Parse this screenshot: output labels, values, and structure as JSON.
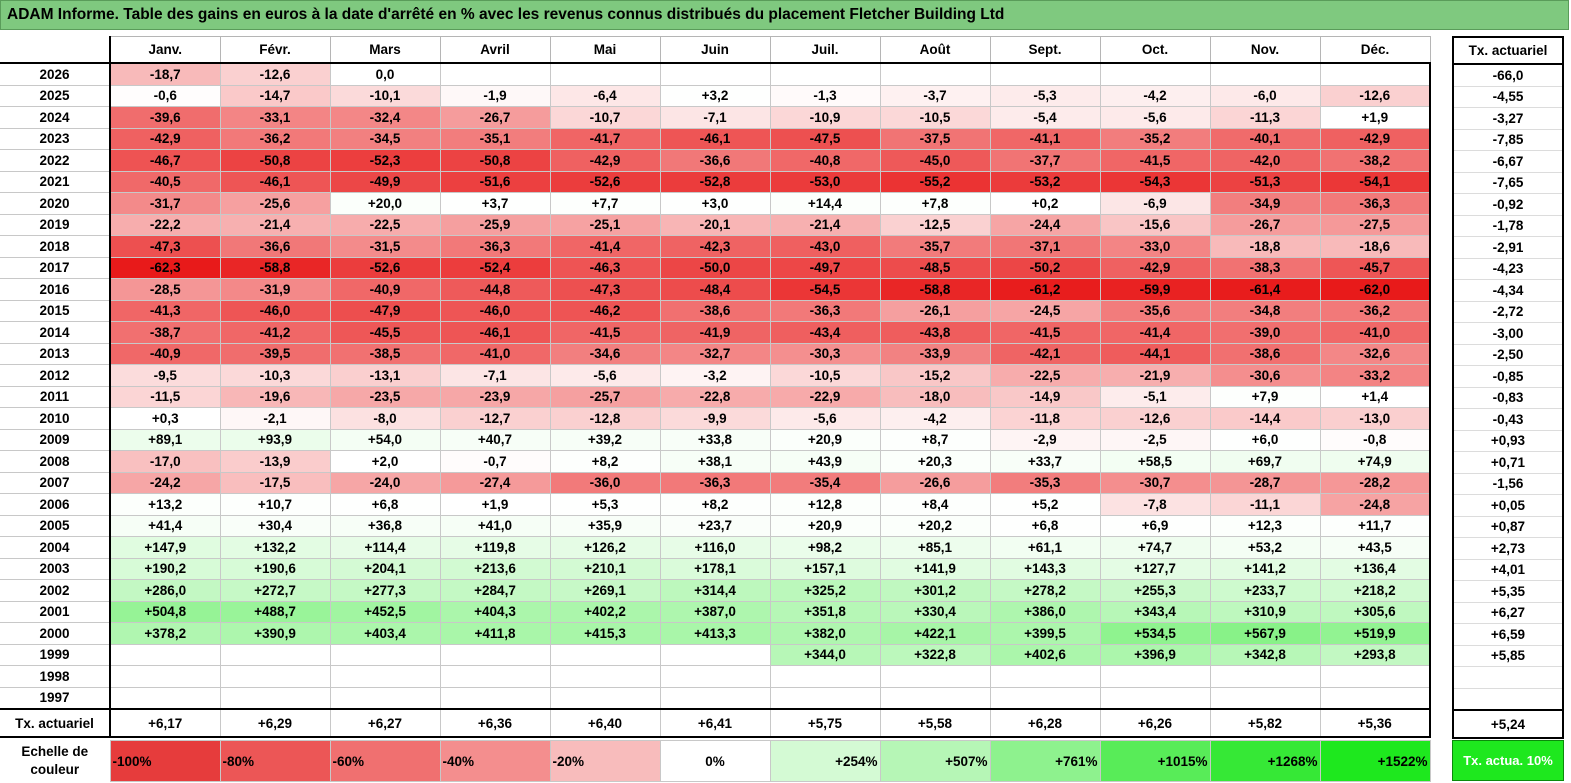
{
  "title": "ADAM Informe. Table des gains en euros à la date d'arrêté en % avec les revenus connus distribués du placement Fletcher Building Ltd",
  "months": [
    "Janv.",
    "Févr.",
    "Mars",
    "Avril",
    "Mai",
    "Juin",
    "Juil.",
    "Août",
    "Sept.",
    "Oct.",
    "Nov.",
    "Déc."
  ],
  "side_header": "Tx. actuariel",
  "rows": [
    {
      "year": "2026",
      "cells": [
        "-18,7",
        "-12,6",
        "0,0",
        "",
        "",
        "",
        "",
        "",
        "",
        "",
        "",
        ""
      ],
      "rate": "-66,0"
    },
    {
      "year": "2025",
      "cells": [
        "-0,6",
        "-14,7",
        "-10,1",
        "-1,9",
        "-6,4",
        "+3,2",
        "-1,3",
        "-3,7",
        "-5,3",
        "-4,2",
        "-6,0",
        "-12,6"
      ],
      "rate": "-4,55"
    },
    {
      "year": "2024",
      "cells": [
        "-39,6",
        "-33,1",
        "-32,4",
        "-26,7",
        "-10,7",
        "-7,1",
        "-10,9",
        "-10,5",
        "-5,4",
        "-5,6",
        "-11,3",
        "+1,9"
      ],
      "rate": "-3,27"
    },
    {
      "year": "2023",
      "cells": [
        "-42,9",
        "-36,2",
        "-34,5",
        "-35,1",
        "-41,7",
        "-46,1",
        "-47,5",
        "-37,5",
        "-41,1",
        "-35,2",
        "-40,1",
        "-42,9"
      ],
      "rate": "-7,85"
    },
    {
      "year": "2022",
      "cells": [
        "-46,7",
        "-50,8",
        "-52,3",
        "-50,8",
        "-42,9",
        "-36,6",
        "-40,8",
        "-45,0",
        "-37,7",
        "-41,5",
        "-42,0",
        "-38,2"
      ],
      "rate": "-6,67"
    },
    {
      "year": "2021",
      "cells": [
        "-40,5",
        "-46,1",
        "-49,9",
        "-51,6",
        "-52,6",
        "-52,8",
        "-53,0",
        "-55,2",
        "-53,2",
        "-54,3",
        "-51,3",
        "-54,1"
      ],
      "rate": "-7,65"
    },
    {
      "year": "2020",
      "cells": [
        "-31,7",
        "-25,6",
        "+20,0",
        "+3,7",
        "+7,7",
        "+3,0",
        "+14,4",
        "+7,8",
        "+0,2",
        "-6,9",
        "-34,9",
        "-36,3"
      ],
      "rate": "-0,92"
    },
    {
      "year": "2019",
      "cells": [
        "-22,2",
        "-21,4",
        "-22,5",
        "-25,9",
        "-25,1",
        "-20,1",
        "-21,4",
        "-12,5",
        "-24,4",
        "-15,6",
        "-26,7",
        "-27,5"
      ],
      "rate": "-1,78"
    },
    {
      "year": "2018",
      "cells": [
        "-47,3",
        "-36,6",
        "-31,5",
        "-36,3",
        "-41,4",
        "-42,3",
        "-43,0",
        "-35,7",
        "-37,1",
        "-33,0",
        "-18,8",
        "-18,6"
      ],
      "rate": "-2,91"
    },
    {
      "year": "2017",
      "cells": [
        "-62,3",
        "-58,8",
        "-52,6",
        "-52,4",
        "-46,3",
        "-50,0",
        "-49,7",
        "-48,5",
        "-50,2",
        "-42,9",
        "-38,3",
        "-45,7"
      ],
      "rate": "-4,23"
    },
    {
      "year": "2016",
      "cells": [
        "-28,5",
        "-31,9",
        "-40,9",
        "-44,8",
        "-47,3",
        "-48,4",
        "-54,5",
        "-58,8",
        "-61,2",
        "-59,9",
        "-61,4",
        "-62,0"
      ],
      "rate": "-4,34"
    },
    {
      "year": "2015",
      "cells": [
        "-41,3",
        "-46,0",
        "-47,9",
        "-46,0",
        "-46,2",
        "-38,6",
        "-36,3",
        "-26,1",
        "-24,5",
        "-35,6",
        "-34,8",
        "-36,2"
      ],
      "rate": "-2,72"
    },
    {
      "year": "2014",
      "cells": [
        "-38,7",
        "-41,2",
        "-45,5",
        "-46,1",
        "-41,5",
        "-41,9",
        "-43,4",
        "-43,8",
        "-41,5",
        "-41,4",
        "-39,0",
        "-41,0"
      ],
      "rate": "-3,00"
    },
    {
      "year": "2013",
      "cells": [
        "-40,9",
        "-39,5",
        "-38,5",
        "-41,0",
        "-34,6",
        "-32,7",
        "-30,3",
        "-33,9",
        "-42,1",
        "-44,1",
        "-38,6",
        "-32,6"
      ],
      "rate": "-2,50"
    },
    {
      "year": "2012",
      "cells": [
        "-9,5",
        "-10,3",
        "-13,1",
        "-7,1",
        "-5,6",
        "-3,2",
        "-10,5",
        "-15,2",
        "-22,5",
        "-21,9",
        "-30,6",
        "-33,2"
      ],
      "rate": "-0,85"
    },
    {
      "year": "2011",
      "cells": [
        "-11,5",
        "-19,6",
        "-23,5",
        "-23,9",
        "-25,7",
        "-22,8",
        "-22,9",
        "-18,0",
        "-14,9",
        "-5,1",
        "+7,9",
        "+1,4"
      ],
      "rate": "-0,83"
    },
    {
      "year": "2010",
      "cells": [
        "+0,3",
        "-2,1",
        "-8,0",
        "-12,7",
        "-12,8",
        "-9,9",
        "-5,6",
        "-4,2",
        "-11,8",
        "-12,6",
        "-14,4",
        "-13,0"
      ],
      "rate": "-0,43"
    },
    {
      "year": "2009",
      "cells": [
        "+89,1",
        "+93,9",
        "+54,0",
        "+40,7",
        "+39,2",
        "+33,8",
        "+20,9",
        "+8,7",
        "-2,9",
        "-2,5",
        "+6,0",
        "-0,8"
      ],
      "rate": "+0,93"
    },
    {
      "year": "2008",
      "cells": [
        "-17,0",
        "-13,9",
        "+2,0",
        "-0,7",
        "+8,2",
        "+38,1",
        "+43,9",
        "+20,3",
        "+33,7",
        "+58,5",
        "+69,7",
        "+74,9"
      ],
      "rate": "+0,71"
    },
    {
      "year": "2007",
      "cells": [
        "-24,2",
        "-17,5",
        "-24,0",
        "-27,4",
        "-36,0",
        "-36,3",
        "-35,4",
        "-26,6",
        "-35,3",
        "-30,7",
        "-28,7",
        "-28,2"
      ],
      "rate": "-1,56"
    },
    {
      "year": "2006",
      "cells": [
        "+13,2",
        "+10,7",
        "+6,8",
        "+1,9",
        "+5,3",
        "+8,2",
        "+12,8",
        "+8,4",
        "+5,2",
        "-7,8",
        "-11,1",
        "-24,8"
      ],
      "rate": "+0,05"
    },
    {
      "year": "2005",
      "cells": [
        "+41,4",
        "+30,4",
        "+36,8",
        "+41,0",
        "+35,9",
        "+23,7",
        "+20,9",
        "+20,2",
        "+6,8",
        "+6,9",
        "+12,3",
        "+11,7"
      ],
      "rate": "+0,87"
    },
    {
      "year": "2004",
      "cells": [
        "+147,9",
        "+132,2",
        "+114,4",
        "+119,8",
        "+126,2",
        "+116,0",
        "+98,2",
        "+85,1",
        "+61,1",
        "+74,7",
        "+53,2",
        "+43,5"
      ],
      "rate": "+2,73"
    },
    {
      "year": "2003",
      "cells": [
        "+190,2",
        "+190,6",
        "+204,1",
        "+213,6",
        "+210,1",
        "+178,1",
        "+157,1",
        "+141,9",
        "+143,3",
        "+127,7",
        "+141,2",
        "+136,4"
      ],
      "rate": "+4,01"
    },
    {
      "year": "2002",
      "cells": [
        "+286,0",
        "+272,7",
        "+277,3",
        "+284,7",
        "+269,1",
        "+314,4",
        "+325,2",
        "+301,2",
        "+278,2",
        "+255,3",
        "+233,7",
        "+218,2"
      ],
      "rate": "+5,35"
    },
    {
      "year": "2001",
      "cells": [
        "+504,8",
        "+488,7",
        "+452,5",
        "+404,3",
        "+402,2",
        "+387,0",
        "+351,8",
        "+330,4",
        "+386,0",
        "+343,4",
        "+310,9",
        "+305,6"
      ],
      "rate": "+6,27"
    },
    {
      "year": "2000",
      "cells": [
        "+378,2",
        "+390,9",
        "+403,4",
        "+411,8",
        "+415,3",
        "+413,3",
        "+382,0",
        "+422,1",
        "+399,5",
        "+534,5",
        "+567,9",
        "+519,9"
      ],
      "rate": "+6,59"
    },
    {
      "year": "1999",
      "cells": [
        "",
        "",
        "",
        "",
        "",
        "",
        "+344,0",
        "+322,8",
        "+402,6",
        "+396,9",
        "+342,8",
        "+293,8"
      ],
      "rate": "+5,85"
    },
    {
      "year": "1998",
      "cells": [
        "",
        "",
        "",
        "",
        "",
        "",
        "",
        "",
        "",
        "",
        "",
        ""
      ],
      "rate": ""
    },
    {
      "year": "1997",
      "cells": [
        "",
        "",
        "",
        "",
        "",
        "",
        "",
        "",
        "",
        "",
        "",
        ""
      ],
      "rate": ""
    }
  ],
  "average_row": {
    "label": "Tx. actuariel",
    "cells": [
      "+6,17",
      "+6,29",
      "+6,27",
      "+6,36",
      "+6,40",
      "+6,41",
      "+5,75",
      "+5,58",
      "+6,28",
      "+6,26",
      "+5,82",
      "+5,36"
    ],
    "rate": "+5,24"
  },
  "scale": {
    "label": "Echelle de couleur",
    "items": [
      "-100%",
      "-80%",
      "-60%",
      "-40%",
      "-20%",
      "0%",
      "+254%",
      "+507%",
      "+761%",
      "+1015%",
      "+1268%",
      "+1522%"
    ],
    "colors": [
      "#e63c3c",
      "#ec5656",
      "#f07070",
      "#f48e8e",
      "#f8bcbc",
      "#ffffff",
      "#d4fad4",
      "#b6f6b6",
      "#8ef28e",
      "#58ec58",
      "#36e836",
      "#1ee81e"
    ],
    "side_label": "Tx. actua. 10%",
    "side_color": "#1ee81e"
  }
}
